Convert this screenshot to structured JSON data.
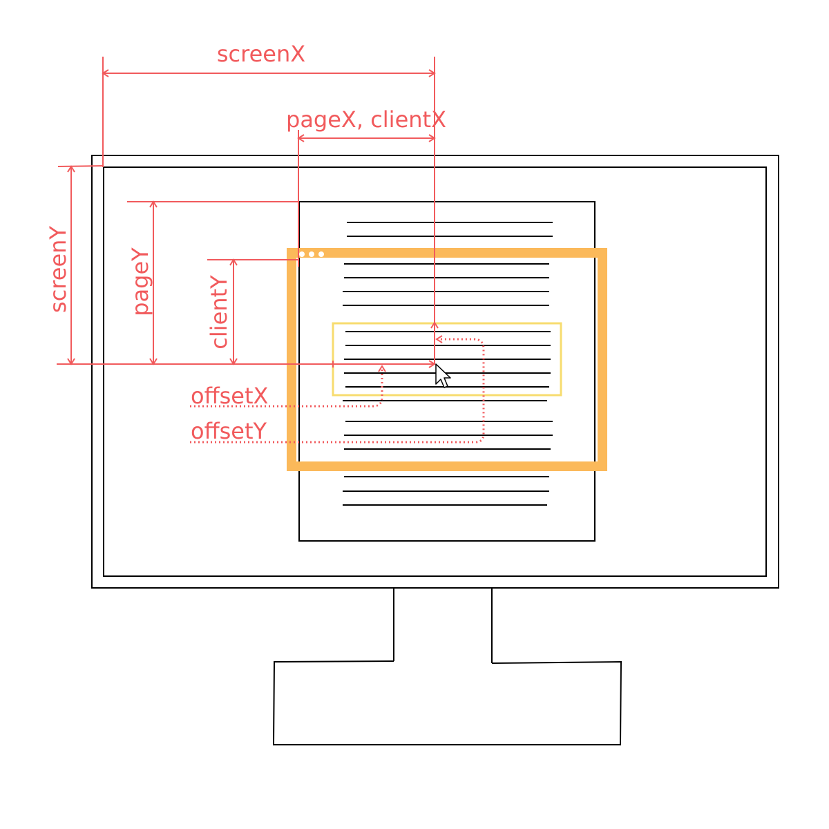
{
  "labels": {
    "screen_x": "screenX",
    "page_client_x": "pageX, clientX",
    "screen_y": "screenY",
    "page_y": "pageY",
    "client_y": "clientY",
    "offset_x": "offsetX",
    "offset_y": "offsetY"
  },
  "colors": {
    "annotation": "#f15a5c",
    "viewport": "#fbb95a",
    "target_element": "#f7dc6f",
    "outline": "#000000",
    "background": "#ffffff"
  },
  "icons": {
    "window_controls": "three-dots-icon",
    "cursor": "mouse-pointer-icon"
  }
}
